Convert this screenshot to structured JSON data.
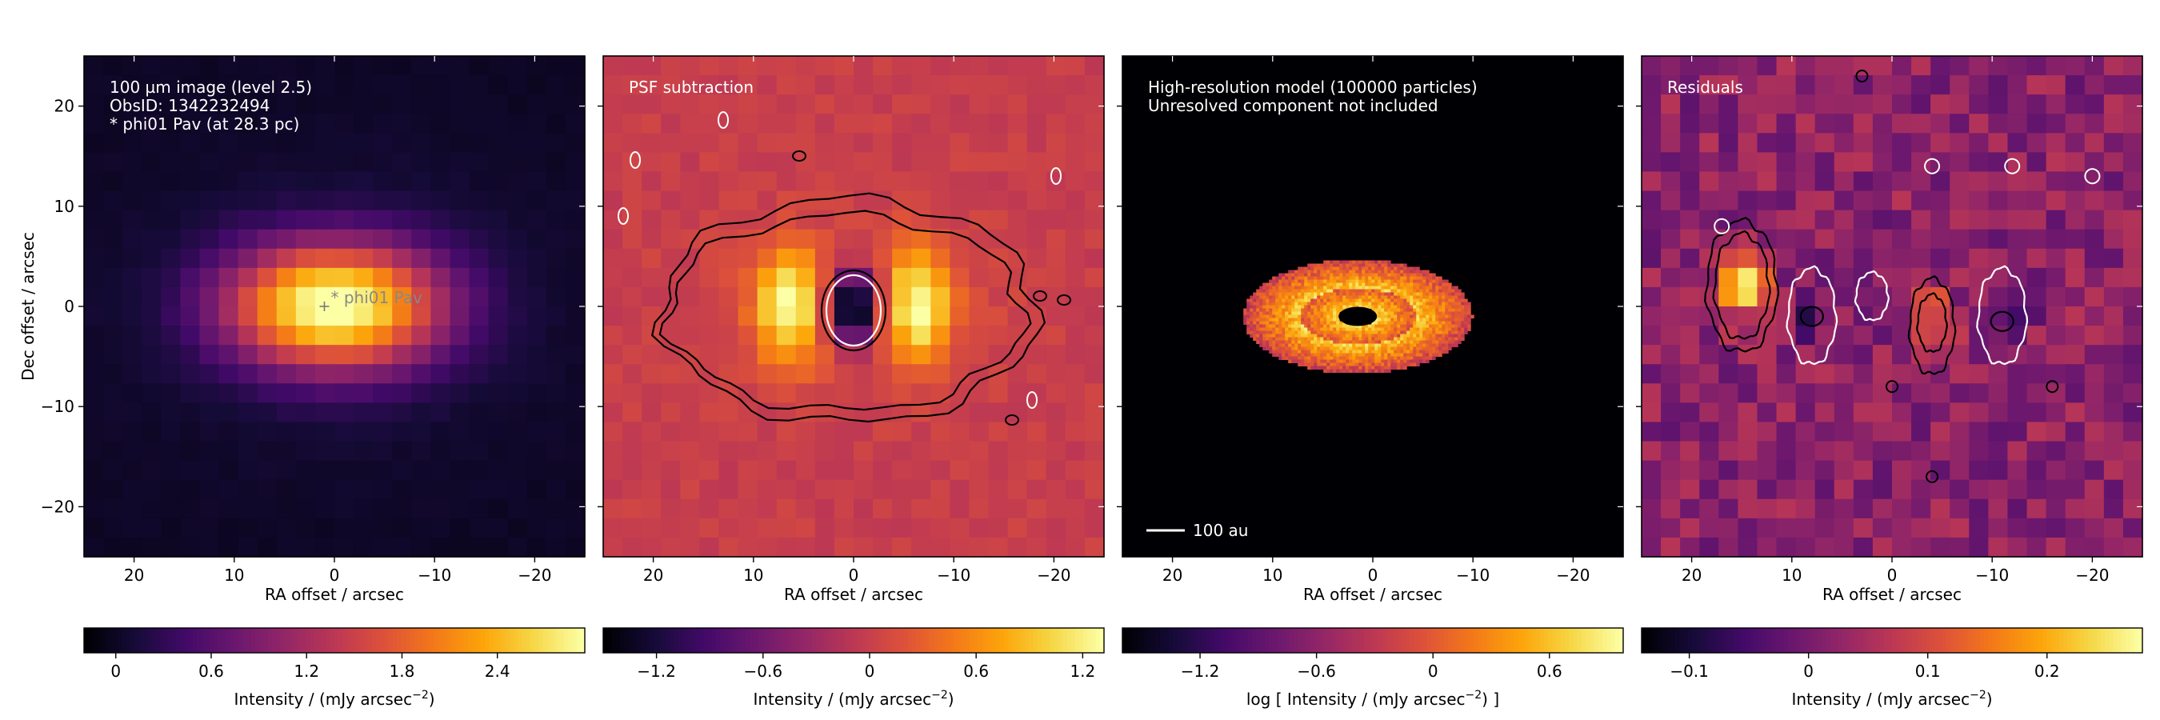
{
  "chart_data": [
    {
      "type": "heatmap",
      "title": "",
      "xlabel": "RA offset / arcsec",
      "ylabel": "Dec offset / arcsec",
      "xlim": [
        25,
        -25
      ],
      "ylim": [
        -25,
        25
      ],
      "xticks": [
        20,
        10,
        0,
        -10,
        -20
      ],
      "yticks": [
        20,
        10,
        0,
        -10,
        -20
      ],
      "xtick_labels": [
        "20",
        "10",
        "0",
        "−10",
        "−20"
      ],
      "ytick_labels": [
        "20",
        "10",
        "0",
        "−10",
        "−20"
      ],
      "annotations": [
        "100 µm image (level 2.5)",
        "ObsID: 1342232494",
        "* phi01 Pav (at 28.3 pc)"
      ],
      "star_label": "* phi01 Pav",
      "star_position": [
        1,
        0
      ],
      "colorbar": {
        "label": "Intensity / (mJy arcsec⁻²)",
        "vmin": -0.2,
        "vmax": 2.95,
        "ticks": [
          0,
          0.6,
          1.2,
          1.8,
          2.4
        ],
        "tick_labels": [
          "0",
          "0.6",
          "1.2",
          "1.8",
          "2.4"
        ]
      },
      "colormap": "inferno",
      "grid": false
    },
    {
      "type": "heatmap",
      "title": "",
      "xlabel": "RA offset / arcsec",
      "xlim": [
        25,
        -25
      ],
      "ylim": [
        -25,
        25
      ],
      "xticks": [
        20,
        10,
        0,
        -10,
        -20
      ],
      "xtick_labels": [
        "20",
        "10",
        "0",
        "−10",
        "−20"
      ],
      "annotations": [
        "PSF subtraction"
      ],
      "contours": {
        "colors": [
          "#000000",
          "#ffffff"
        ]
      },
      "colorbar": {
        "label": "Intensity / (mJy arcsec⁻²)",
        "vmin": -1.5,
        "vmax": 1.32,
        "ticks": [
          -1.2,
          -0.6,
          0,
          0.6,
          1.2
        ],
        "tick_labels": [
          "−1.2",
          "−0.6",
          "0",
          "0.6",
          "1.2"
        ]
      },
      "colormap": "inferno",
      "grid": false
    },
    {
      "type": "heatmap",
      "title": "",
      "xlabel": "RA offset / arcsec",
      "xlim": [
        25,
        -25
      ],
      "ylim": [
        -25,
        25
      ],
      "xticks": [
        20,
        10,
        0,
        -10,
        -20
      ],
      "xtick_labels": [
        "20",
        "10",
        "0",
        "−10",
        "−20"
      ],
      "annotations": [
        "High-resolution model (100000 particles)",
        "Unresolved component not included"
      ],
      "scalebar_label": "100 au",
      "colorbar": {
        "label": "log [ Intensity / (mJy arcsec⁻²) ]",
        "vmin": -1.6,
        "vmax": 0.98,
        "ticks": [
          -1.2,
          -0.6,
          0,
          0.6
        ],
        "tick_labels": [
          "−1.2",
          "−0.6",
          "0",
          "0.6"
        ]
      },
      "colormap": "inferno",
      "grid": false
    },
    {
      "type": "heatmap",
      "title": "",
      "xlabel": "RA offset / arcsec",
      "xlim": [
        25,
        -25
      ],
      "ylim": [
        -25,
        25
      ],
      "xticks": [
        20,
        10,
        0,
        -10,
        -20
      ],
      "xtick_labels": [
        "20",
        "10",
        "0",
        "−10",
        "−20"
      ],
      "annotations": [
        "Residuals"
      ],
      "contours": {
        "colors": [
          "#000000",
          "#ffffff"
        ]
      },
      "colorbar": {
        "label": "Intensity / (mJy arcsec⁻²)",
        "vmin": -0.14,
        "vmax": 0.28,
        "ticks": [
          -0.1,
          0,
          0.1,
          0.2
        ],
        "tick_labels": [
          "−0.1",
          "0",
          "0.1",
          "0.2"
        ]
      },
      "colormap": "inferno",
      "grid": false
    }
  ]
}
